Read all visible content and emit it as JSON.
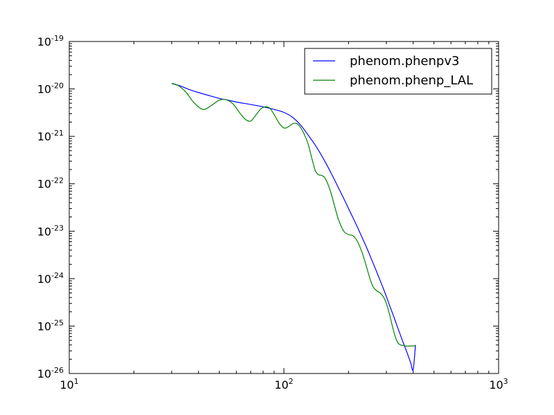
{
  "chart_data": {
    "type": "line",
    "title": "",
    "xlabel": "",
    "ylabel": "",
    "xscale": "log",
    "yscale": "log",
    "xlim": [
      10,
      1000
    ],
    "ylim": [
      1e-26,
      1e-19
    ],
    "x_ticks": [
      {
        "base": "10",
        "exp": "1",
        "value": 10
      },
      {
        "base": "10",
        "exp": "2",
        "value": 100
      },
      {
        "base": "10",
        "exp": "3",
        "value": 1000
      }
    ],
    "y_ticks": [
      {
        "base": "10",
        "exp": "-19",
        "value": 1e-19
      },
      {
        "base": "10",
        "exp": "-20",
        "value": 1e-20
      },
      {
        "base": "10",
        "exp": "-21",
        "value": 1e-21
      },
      {
        "base": "10",
        "exp": "-22",
        "value": 1e-22
      },
      {
        "base": "10",
        "exp": "-23",
        "value": 1e-23
      },
      {
        "base": "10",
        "exp": "-24",
        "value": 1e-24
      },
      {
        "base": "10",
        "exp": "-25",
        "value": 1e-25
      },
      {
        "base": "10",
        "exp": "-26",
        "value": 1e-26
      }
    ],
    "legend_position": "top-right",
    "series": [
      {
        "name": "phenom.phenpv3",
        "color": "#0000ff",
        "x": [
          30,
          33,
          36,
          40,
          45,
          50,
          55,
          60,
          70,
          80,
          90,
          100,
          110,
          120,
          130,
          140,
          150,
          160,
          170,
          180,
          190,
          200,
          210,
          220,
          230,
          240,
          250,
          260,
          270,
          280,
          290,
          300,
          310,
          320,
          330,
          340,
          350,
          360,
          370,
          380,
          390,
          400,
          410
        ],
        "y": [
          1.3e-20,
          1.15e-20,
          9.8e-21,
          8.4e-21,
          7.2e-21,
          6.3e-21,
          5.8e-21,
          5.3e-21,
          4.7e-21,
          4.2e-21,
          3.7e-21,
          3.2e-21,
          2.5e-21,
          1.7e-21,
          1.05e-21,
          6.5e-22,
          3.9e-22,
          2.3e-22,
          1.35e-22,
          8e-23,
          4.9e-23,
          3e-23,
          1.9e-23,
          1.22e-23,
          7.8e-24,
          5.1e-24,
          3.3e-24,
          2.15e-24,
          1.42e-24,
          9.4e-25,
          6.3e-25,
          4.2e-25,
          2.8e-25,
          1.9e-25,
          1.3e-25,
          8.9e-26,
          6.2e-26,
          4.4e-26,
          3.2e-26,
          2.3e-26,
          1.65e-26,
          1.2e-26,
          4e-26
        ]
      },
      {
        "name": "phenom.phenp_LAL",
        "color": "#008000",
        "x": [
          30,
          32,
          35,
          38,
          42,
          46,
          50,
          54,
          58,
          62,
          66,
          70,
          74,
          78,
          82,
          86,
          90,
          95,
          100,
          105,
          110,
          115,
          120,
          125,
          130,
          135,
          140,
          145,
          150,
          155,
          160,
          165,
          170,
          175,
          180,
          190,
          200,
          210,
          220,
          230,
          240,
          250,
          260,
          270,
          280,
          290,
          300,
          310,
          320,
          330,
          340,
          350,
          360,
          370,
          380,
          390,
          400,
          410
        ],
        "y": [
          1.3e-20,
          1.2e-20,
          8.5e-21,
          5.2e-21,
          3.7e-21,
          4.5e-21,
          5.8e-21,
          5.9e-21,
          4.8e-21,
          3.2e-21,
          2.3e-21,
          2.1e-21,
          2.8e-21,
          3.8e-21,
          4.2e-21,
          3.9e-21,
          2.9e-21,
          1.9e-21,
          1.5e-21,
          1.6e-21,
          1.85e-21,
          1.85e-21,
          1.5e-21,
          1.05e-21,
          6.6e-22,
          3.4e-22,
          1.9e-22,
          1.55e-22,
          1.5e-22,
          1.35e-22,
          1e-22,
          6.8e-23,
          4.2e-23,
          2.6e-23,
          1.7e-23,
          1e-23,
          8.5e-24,
          8e-24,
          6.1e-24,
          3.8e-24,
          2.1e-24,
          1.1e-24,
          6.8e-25,
          5.6e-25,
          5e-25,
          4.2e-25,
          3e-25,
          1.8e-25,
          1e-25,
          6e-26,
          4.4e-26,
          4e-26,
          3.9e-26,
          3.8e-26,
          3.8e-26,
          3.8e-26,
          3.8e-26,
          3.9e-26
        ]
      }
    ]
  }
}
